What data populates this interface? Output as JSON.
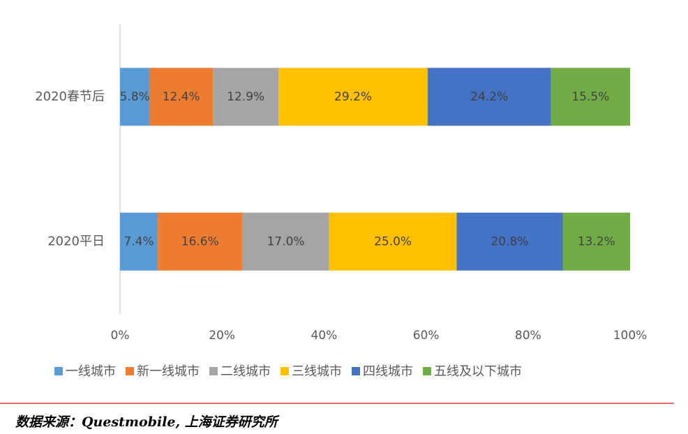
{
  "chart_data": {
    "type": "bar",
    "orientation": "horizontal",
    "stacked": true,
    "categories": [
      "2020春节后",
      "2020平日"
    ],
    "series": [
      {
        "name": "一线城市",
        "color": "#5b9bd5",
        "values": [
          5.8,
          7.4
        ],
        "value_labels": [
          "5.8%",
          "7.4%"
        ]
      },
      {
        "name": "新一线城市",
        "color": "#ed7d31",
        "values": [
          12.4,
          16.6
        ],
        "value_labels": [
          "12.4%",
          "16.6%"
        ]
      },
      {
        "name": "二线城市",
        "color": "#a5a5a5",
        "values": [
          12.9,
          17.0
        ],
        "value_labels": [
          "12.9%",
          "17.0%"
        ]
      },
      {
        "name": "三线城市",
        "color": "#ffc000",
        "values": [
          29.2,
          25.0
        ],
        "value_labels": [
          "29.2%",
          "25.0%"
        ]
      },
      {
        "name": "四线城市",
        "color": "#4472c4",
        "values": [
          24.2,
          20.8
        ],
        "value_labels": [
          "24.2%",
          "20.8%"
        ]
      },
      {
        "name": "五线及以下城市",
        "color": "#70ad47",
        "values": [
          15.5,
          13.2
        ],
        "value_labels": [
          "15.5%",
          "13.2%"
        ]
      }
    ],
    "xlim": [
      0,
      100
    ],
    "xticks": [
      {
        "value": 0,
        "label": "0%"
      },
      {
        "value": 20,
        "label": "20%"
      },
      {
        "value": 40,
        "label": "40%"
      },
      {
        "value": 60,
        "label": "60%"
      },
      {
        "value": 80,
        "label": "80%"
      },
      {
        "value": 100,
        "label": "100%"
      }
    ],
    "grid": false,
    "legend": "bottom"
  },
  "source": "数据来源：Questmobile, 上海证券研究所"
}
